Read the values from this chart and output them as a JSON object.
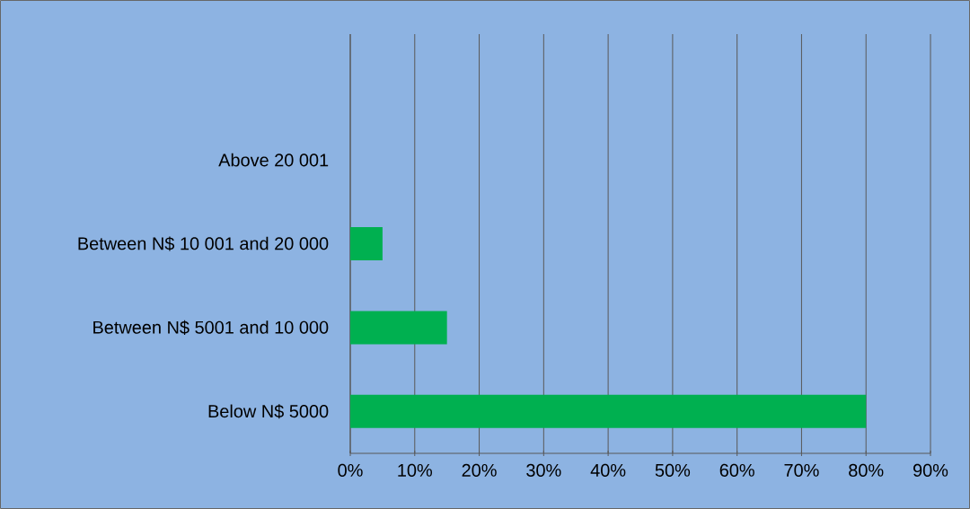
{
  "chart_data": {
    "type": "bar",
    "orientation": "horizontal",
    "categories": [
      null,
      "Above 20 001",
      "Between N$ 10 001 and 20 000",
      "Between N$ 5001 and 10 000",
      "Below N$ 5000"
    ],
    "values": [
      null,
      0,
      5,
      15,
      80
    ],
    "color": "#00b050",
    "xlim": [
      0,
      90
    ],
    "xticks": [
      {
        "value": 0,
        "label": "0%"
      },
      {
        "value": 10,
        "label": "10%"
      },
      {
        "value": 20,
        "label": "20%"
      },
      {
        "value": 30,
        "label": "30%"
      },
      {
        "value": 40,
        "label": "40%"
      },
      {
        "value": 50,
        "label": "50%"
      },
      {
        "value": 60,
        "label": "60%"
      },
      {
        "value": 70,
        "label": "70%"
      },
      {
        "value": 80,
        "label": "80%"
      },
      {
        "value": 90,
        "label": "90%"
      }
    ],
    "grid": "x"
  }
}
